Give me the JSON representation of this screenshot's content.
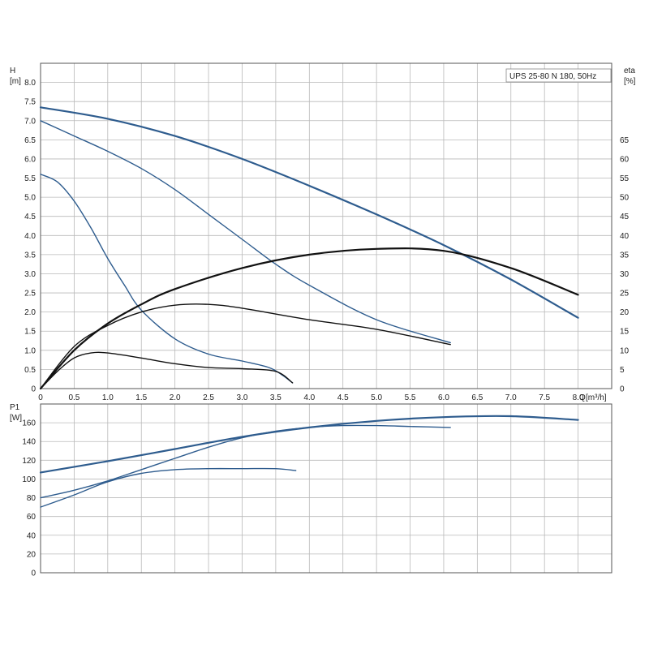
{
  "title": "UPS 25-80 N 180, 50Hz",
  "upper_axis": {
    "y_label": "H",
    "y_unit": "[m]",
    "y2_label": "eta",
    "y2_unit": "[%]",
    "x_label": "Q",
    "x_unit": "[m³/h]"
  },
  "lower_axis": {
    "y_label": "P1",
    "y_unit": "[W]"
  },
  "colors": {
    "head_curve": "#2e5c8e",
    "efficiency_curve": "#111111",
    "power_curve": "#2e5c8e",
    "grid": "#b9b9b9"
  },
  "chart_data": [
    {
      "type": "line",
      "panel": "head_and_efficiency",
      "xlabel": "Q [m³/h]",
      "ylabel": "H [m]",
      "y2label": "eta [%]",
      "xlim": [
        0,
        8.5
      ],
      "ylim": [
        0,
        8.5
      ],
      "y2lim": [
        0,
        85
      ],
      "xticks": [
        "0",
        "0.5",
        "1.0",
        "1.5",
        "2.0",
        "2.5",
        "3.0",
        "3.5",
        "4.0",
        "4.5",
        "5.0",
        "5.5",
        "6.0",
        "6.5",
        "7.0",
        "7.5",
        "8.0"
      ],
      "yticks": [
        "0",
        "0.5",
        "1.0",
        "1.5",
        "2.0",
        "2.5",
        "3.0",
        "3.5",
        "4.0",
        "4.5",
        "5.0",
        "5.5",
        "6.0",
        "6.5",
        "7.0",
        "7.5",
        "8.0"
      ],
      "y2ticks": [
        "0",
        "5",
        "10",
        "15",
        "20",
        "25",
        "30",
        "35",
        "40",
        "45",
        "50",
        "55",
        "60",
        "65"
      ],
      "grid": true,
      "head_series": [
        {
          "x": [
            0,
            1,
            2,
            3,
            4,
            5,
            6,
            7,
            8
          ],
          "y": [
            7.35,
            7.05,
            6.6,
            6.0,
            5.3,
            4.55,
            3.75,
            2.85,
            1.85
          ]
        },
        {
          "x": [
            0,
            0.5,
            1,
            1.5,
            2,
            2.5,
            3,
            3.5,
            4,
            5,
            6.1
          ],
          "y": [
            7.0,
            6.6,
            6.2,
            5.75,
            5.2,
            4.55,
            3.9,
            3.25,
            2.7,
            1.8,
            1.2
          ]
        },
        {
          "x": [
            0,
            0.25,
            0.5,
            0.75,
            1,
            1.25,
            1.5,
            2,
            2.5,
            3,
            3.4,
            3.6,
            3.75
          ],
          "y": [
            5.6,
            5.4,
            4.9,
            4.2,
            3.4,
            2.7,
            2.05,
            1.3,
            0.9,
            0.72,
            0.55,
            0.35,
            0.15
          ]
        }
      ],
      "efficiency_series": [
        {
          "x": [
            0,
            0.5,
            1,
            1.5,
            2,
            3,
            4,
            5,
            6,
            7,
            8
          ],
          "y": [
            0,
            10,
            17,
            22,
            26,
            31.5,
            35,
            36.5,
            36,
            31.5,
            24.5
          ]
        },
        {
          "x": [
            0,
            0.5,
            1,
            1.5,
            2,
            2.5,
            3,
            4,
            5,
            6.1
          ],
          "y": [
            0,
            11,
            16.5,
            20,
            21.8,
            22,
            21,
            18,
            15.5,
            11.5
          ]
        },
        {
          "x": [
            0,
            0.25,
            0.5,
            0.75,
            1,
            1.5,
            2,
            2.5,
            3,
            3.5,
            3.75
          ],
          "y": [
            0,
            4.5,
            8,
            9.3,
            9.3,
            8,
            6.5,
            5.5,
            5.2,
            4.5,
            1.5
          ]
        }
      ]
    },
    {
      "type": "line",
      "panel": "power",
      "xlabel": "Q [m³/h]",
      "ylabel": "P1 [W]",
      "xlim": [
        0,
        8.5
      ],
      "ylim": [
        0,
        180
      ],
      "yticks": [
        "0",
        "20",
        "40",
        "60",
        "80",
        "100",
        "120",
        "140",
        "160"
      ],
      "grid": true,
      "series": [
        {
          "x": [
            0,
            1,
            2,
            3,
            4,
            5,
            6,
            7,
            8
          ],
          "y": [
            107,
            119,
            132,
            145,
            155,
            162,
            166,
            167,
            163
          ]
        },
        {
          "x": [
            0,
            0.5,
            1,
            1.5,
            2,
            2.5,
            3,
            3.5,
            4,
            4.5,
            5,
            5.5,
            6.1
          ],
          "y": [
            80,
            88,
            98,
            110,
            122,
            134,
            144,
            151,
            155,
            157,
            157,
            156,
            155
          ]
        },
        {
          "x": [
            0,
            0.5,
            1,
            1.5,
            2,
            2.5,
            3,
            3.5,
            3.8
          ],
          "y": [
            70,
            83,
            97,
            106,
            110,
            111,
            111,
            111,
            109
          ]
        }
      ]
    }
  ]
}
